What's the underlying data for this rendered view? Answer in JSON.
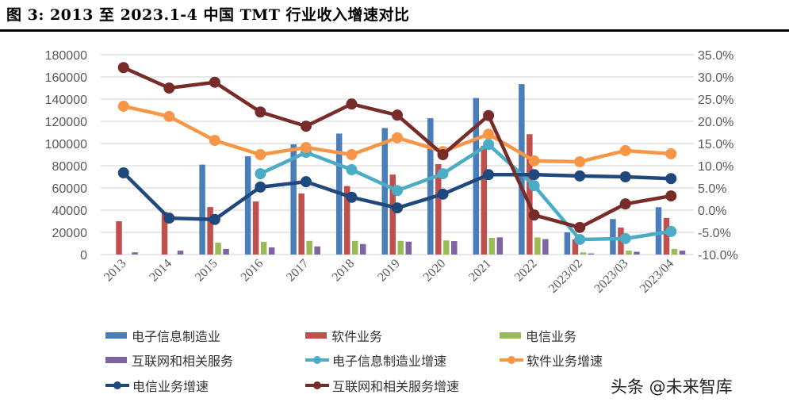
{
  "title": "图 3: 2013 至 2023.1-4 中国 TMT 行业收入增速对比",
  "watermark": "头条 @未来智库",
  "chart_data": {
    "type": "bar+line",
    "categories": [
      "2013",
      "2014",
      "2015",
      "2016",
      "2017",
      "2018",
      "2019",
      "2020",
      "2021",
      "2022",
      "2023/02",
      "2023/03",
      "2023/04"
    ],
    "y_left": {
      "ylim": [
        0,
        180000
      ],
      "ticks": [
        "0",
        "20000",
        "40000",
        "60000",
        "80000",
        "100000",
        "120000",
        "140000",
        "160000",
        "180000"
      ]
    },
    "y_right": {
      "ylim": [
        -10,
        35
      ],
      "ticks": [
        "-10.0%",
        "-5.0%",
        "0.0%",
        "5.0%",
        "10.0%",
        "15.0%",
        "20.0%",
        "25.0%",
        "30.0%",
        "35.0%"
      ]
    },
    "grid": true,
    "legend_placement": "bottom",
    "bars": [
      {
        "name": "电子信息制造业",
        "color": "#4a7ebb",
        "values": [
          null,
          null,
          81000,
          88500,
          99300,
          109000,
          114000,
          122800,
          141000,
          153500,
          20000,
          32000,
          42700
        ]
      },
      {
        "name": "软件业务",
        "color": "#c0504d",
        "values": [
          30000,
          38500,
          42800,
          47800,
          55000,
          61700,
          72000,
          81500,
          98000,
          108400,
          13700,
          24300,
          33000
        ]
      },
      {
        "name": "电信业务",
        "color": "#9bbb59",
        "values": [
          null,
          null,
          10700,
          11400,
          12300,
          12300,
          12300,
          12700,
          15000,
          15400,
          2000,
          3500,
          5000
        ]
      },
      {
        "name": "互联网和相关服务",
        "color": "#8064a2",
        "values": [
          2000,
          3500,
          5000,
          6400,
          7300,
          9500,
          11600,
          12100,
          15500,
          13900,
          1000,
          2500,
          3500
        ]
      }
    ],
    "lines": [
      {
        "name": "电子信息制造业增速",
        "color": "#4bacc6",
        "values": [
          null,
          null,
          null,
          8.2,
          13.0,
          9.1,
          4.4,
          8.2,
          14.8,
          5.5,
          -6.6,
          -6.4,
          -4.8
        ]
      },
      {
        "name": "软件业务增速",
        "color": "#f79646",
        "values": [
          23.4,
          21.1,
          15.7,
          12.5,
          14.1,
          12.5,
          16.3,
          13.2,
          17.1,
          11.1,
          10.9,
          13.4,
          12.7
        ]
      },
      {
        "name": "电信业务增速",
        "color": "#1f497d",
        "values": [
          8.4,
          -1.8,
          -2.1,
          5.2,
          6.4,
          2.9,
          0.5,
          3.6,
          8.0,
          8.0,
          7.7,
          7.5,
          7.1
        ]
      },
      {
        "name": "互联网和相关服务增速",
        "color": "#772c2a",
        "values": [
          32.1,
          27.5,
          28.8,
          22.1,
          18.9,
          23.9,
          21.4,
          12.5,
          21.3,
          -1.1,
          -3.9,
          1.4,
          3.2
        ]
      }
    ]
  }
}
